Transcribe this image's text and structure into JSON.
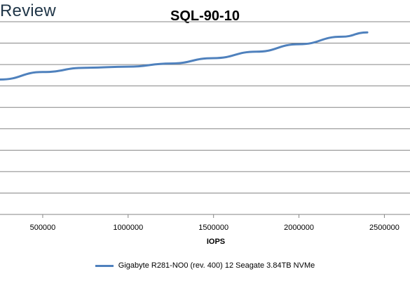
{
  "brand": "Review",
  "chart_data": {
    "type": "line",
    "title": "SQL-90-10",
    "xlabel": "IOPS",
    "ylabel": "",
    "xlim": [
      250000,
      2650000
    ],
    "ylim": [
      0,
      9
    ],
    "x_ticks": [
      500000,
      1000000,
      1500000,
      2000000,
      2500000
    ],
    "x_tick_labels": [
      "500000",
      "1000000",
      "1500000",
      "2000000",
      "2500000"
    ],
    "grid": true,
    "legend_position": "bottom",
    "series": [
      {
        "name": "Gigabyte R281-NO0 (rev. 400) 12 Seagate 3.84TB NVMe",
        "color": "#4f81bd",
        "x": [
          250000,
          500000,
          750000,
          1000000,
          1250000,
          1500000,
          1750000,
          2000000,
          2250000,
          2400000
        ],
        "y": [
          6.3,
          6.65,
          6.85,
          6.9,
          7.05,
          7.3,
          7.6,
          7.95,
          8.3,
          8.5
        ]
      }
    ]
  }
}
